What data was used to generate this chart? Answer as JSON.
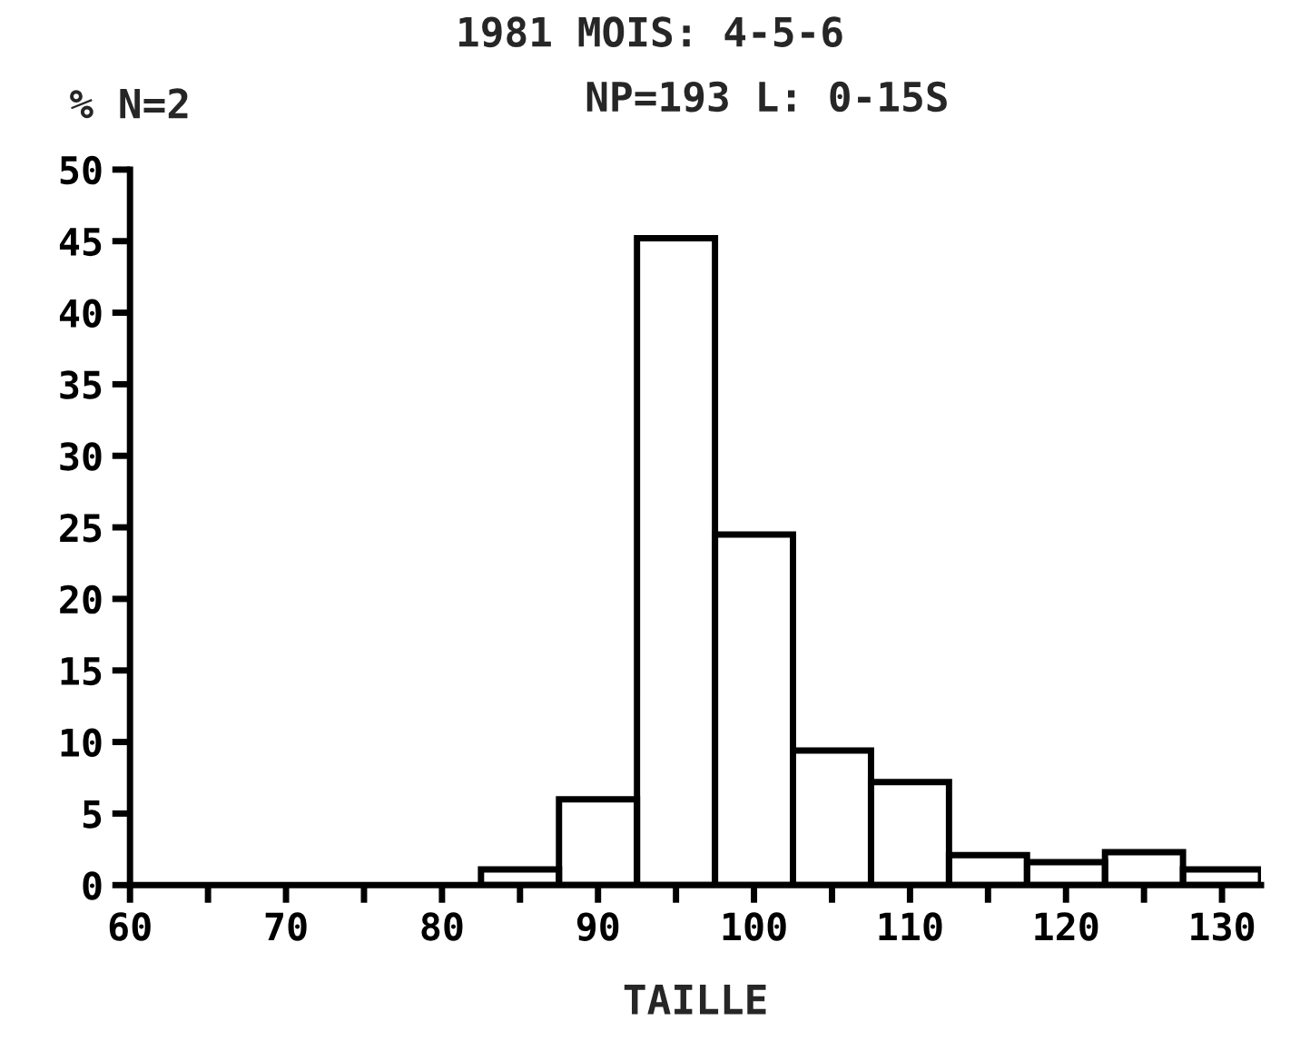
{
  "chart_data": {
    "type": "histogram",
    "title": "1981 MOIS: 4-5-6",
    "subtitle": "NP=193 L: 0-15S",
    "ylabel": "% N=2",
    "xlabel": "TAILLE",
    "bins": [
      82.5,
      87.5,
      92.5,
      97.5,
      102.5,
      107.5,
      112.5,
      117.5,
      122.5,
      127.5,
      132.5
    ],
    "values": [
      1.1,
      6.0,
      45.2,
      24.5,
      9.4,
      7.2,
      2.1,
      1.6,
      2.3,
      1.1
    ],
    "color": "#000000",
    "xlim": [
      60,
      132.5
    ],
    "ylim": [
      0,
      50
    ],
    "xticks": [
      60,
      {
        "value": 65,
        "label": null
      },
      70,
      {
        "value": 75,
        "label": null
      },
      80,
      {
        "value": 85,
        "label": null
      },
      90,
      {
        "value": 95,
        "label": null
      },
      100,
      {
        "value": 105,
        "label": null
      },
      110,
      {
        "value": 115,
        "label": null
      },
      120,
      {
        "value": 125,
        "label": null
      },
      130
    ],
    "yticks": [
      0,
      5,
      10,
      15,
      20,
      25,
      30,
      35,
      40,
      45,
      50
    ],
    "grid": false
  }
}
